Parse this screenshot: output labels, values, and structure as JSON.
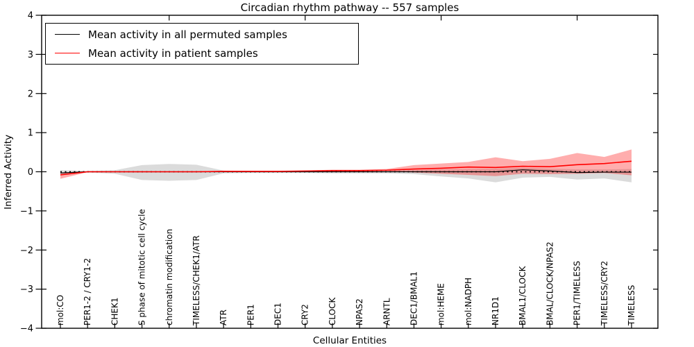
{
  "figure": {
    "title": "Circadian rhythm pathway -- 557 samples",
    "xlabel": "Cellular Entities",
    "ylabel": "Inferred Activity"
  },
  "legend": {
    "items": [
      {
        "label": "Mean activity in all permuted samples",
        "color": "#000000"
      },
      {
        "label": "Mean activity in patient samples",
        "color": "#ff0000"
      }
    ]
  },
  "chart_data": {
    "type": "line",
    "title": "Circadian rhythm pathway -- 557 samples",
    "xlabel": "Cellular Entities",
    "ylabel": "Inferred Activity",
    "ylim": [
      -4,
      4
    ],
    "yticks": [
      4,
      3,
      2,
      1,
      0,
      -1,
      -2,
      -3,
      -4
    ],
    "grid": false,
    "legend_position": "upper left",
    "zero_line": true,
    "top_tick_indices": [
      4,
      9,
      14,
      19
    ],
    "categories": [
      "mol:CO",
      "PER1-2 / CRY1-2",
      "CHEK1",
      "S phase of mitotic cell cycle",
      "chromatin modification",
      "TIMELESS/CHEK1/ATR",
      "ATR",
      "PER1",
      "DEC1",
      "CRY2",
      "CLOCK",
      "NPAS2",
      "ARNTL",
      "DEC1/BMAL1",
      "mol:HEME",
      "mol:NADPH",
      "NR1D1",
      "BMAL1/CLOCK",
      "BMAL/CLOCK/NPAS2",
      "PER1/TIMELESS",
      "TIMELESS/CRY2",
      "TIMELESS"
    ],
    "series": [
      {
        "name": "Mean activity in all permuted samples",
        "color": "#000000",
        "band_color": "#000000",
        "band_opacity": 0.14,
        "line_width": 1.2,
        "values": [
          -0.03,
          0,
          0,
          0,
          0,
          0,
          0,
          0,
          0,
          0,
          0,
          0,
          0,
          0,
          0,
          0,
          0,
          0.05,
          0.02,
          -0.02,
          -0.01,
          -0.01
        ],
        "band_high": [
          0.04,
          0.02,
          0.04,
          0.17,
          0.2,
          0.18,
          0.03,
          0.02,
          0.02,
          0.02,
          0.03,
          0.03,
          0.03,
          0.04,
          0.06,
          0.07,
          0.08,
          0.1,
          0.08,
          0.06,
          0.06,
          0.07
        ],
        "band_low": [
          -0.06,
          -0.02,
          -0.05,
          -0.21,
          -0.23,
          -0.21,
          -0.04,
          -0.03,
          -0.03,
          -0.03,
          -0.04,
          -0.04,
          -0.04,
          -0.06,
          -0.12,
          -0.17,
          -0.27,
          -0.15,
          -0.13,
          -0.2,
          -0.17,
          -0.27
        ]
      },
      {
        "name": "Mean activity in patient samples",
        "color": "#ff0000",
        "band_color": "#ff0000",
        "band_opacity": 0.32,
        "line_width": 1.6,
        "values": [
          -0.08,
          0,
          0,
          0,
          0,
          0,
          0.01,
          0.01,
          0.01,
          0.02,
          0.03,
          0.03,
          0.04,
          0.07,
          0.09,
          0.12,
          0.11,
          0.14,
          0.13,
          0.18,
          0.21,
          0.27
        ],
        "band_high": [
          -0.02,
          0.01,
          0.01,
          0.01,
          0.01,
          0.01,
          0.02,
          0.02,
          0.02,
          0.03,
          0.05,
          0.05,
          0.07,
          0.17,
          0.21,
          0.25,
          0.37,
          0.27,
          0.33,
          0.48,
          0.38,
          0.57
        ],
        "band_low": [
          -0.18,
          -0.01,
          -0.01,
          -0.01,
          -0.01,
          -0.01,
          0,
          0,
          0,
          0.01,
          0.01,
          0.01,
          0.02,
          -0.02,
          -0.05,
          -0.08,
          -0.11,
          -0.05,
          -0.06,
          -0.05,
          -0.03,
          -0.09
        ]
      }
    ]
  }
}
